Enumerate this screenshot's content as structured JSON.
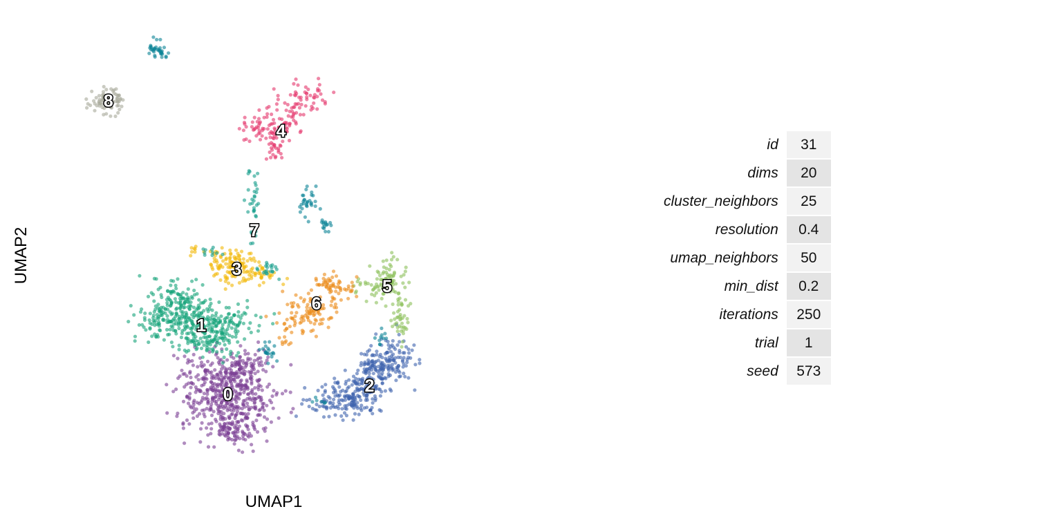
{
  "chart_data": {
    "type": "scatter",
    "xlabel": "UMAP1",
    "ylabel": "UMAP2",
    "xlim": [
      0,
      100
    ],
    "ylim": [
      0,
      100
    ],
    "grid": false,
    "legend": "none",
    "point_opacity": 0.6,
    "clusters": [
      {
        "label": "0",
        "color": "#7B3F94",
        "label_pos": [
          39,
          15
        ],
        "blobs": [
          [
            39,
            14,
            6.5,
            4.5,
            380
          ],
          [
            40,
            7,
            4,
            2,
            90
          ],
          [
            37,
            21,
            6,
            3,
            120
          ],
          [
            43,
            22,
            4,
            3,
            60
          ]
        ]
      },
      {
        "label": "1",
        "color": "#16A37A",
        "label_pos": [
          33,
          31
        ],
        "blobs": [
          [
            33,
            31,
            7,
            4,
            300
          ],
          [
            28,
            37,
            4,
            3,
            90
          ],
          [
            23,
            32,
            3,
            2,
            50
          ],
          [
            36,
            27,
            3,
            2,
            40
          ]
        ]
      },
      {
        "label": "2",
        "color": "#3D63AD",
        "label_pos": [
          71,
          17
        ],
        "blobs": [
          [
            65,
            14,
            5,
            2.5,
            160
          ],
          [
            73,
            21,
            4,
            3,
            140
          ],
          [
            77,
            24,
            2.5,
            3,
            60
          ],
          [
            70,
            17,
            3,
            2,
            40
          ]
        ]
      },
      {
        "label": "3",
        "color": "#F2B705",
        "label_pos": [
          41,
          44
        ],
        "blobs": [
          [
            40,
            45,
            3.5,
            2.5,
            120
          ],
          [
            46,
            42,
            3,
            1.5,
            30
          ],
          [
            32,
            49,
            1,
            1,
            8
          ]
        ]
      },
      {
        "label": "4",
        "color": "#E4376D",
        "label_pos": [
          51,
          76
        ],
        "blobs": [
          [
            47,
            77,
            3,
            2,
            60
          ],
          [
            50,
            73,
            2,
            2,
            35
          ],
          [
            57,
            84,
            4,
            2,
            50
          ],
          [
            53,
            79,
            2,
            2,
            25
          ]
        ]
      },
      {
        "label": "5",
        "color": "#8CC05A",
        "label_pos": [
          75,
          40
        ],
        "blobs": [
          [
            75,
            41,
            3,
            3,
            90
          ],
          [
            78,
            33,
            1.5,
            3,
            40
          ],
          [
            69,
            40,
            1.5,
            1,
            10
          ]
        ]
      },
      {
        "label": "6",
        "color": "#EB8A18",
        "label_pos": [
          59,
          36
        ],
        "blobs": [
          [
            57,
            34,
            4,
            3,
            90
          ],
          [
            63,
            40,
            3,
            2,
            60
          ],
          [
            53,
            29,
            2,
            2,
            15
          ]
        ]
      },
      {
        "label": "7",
        "color": "#149C8A",
        "label_pos": [
          45,
          53
        ],
        "blobs": [
          [
            45,
            60,
            1.2,
            5,
            35
          ],
          [
            48,
            44,
            2,
            1.2,
            20
          ],
          [
            35,
            48,
            1.5,
            1.2,
            10
          ]
        ]
      },
      {
        "label": "8",
        "color": "#A7A999",
        "label_pos": [
          12,
          83
        ],
        "blobs": [
          [
            12,
            83,
            2.5,
            1.8,
            90
          ]
        ]
      },
      {
        "label": "",
        "color": "#0B8496",
        "label_pos": null,
        "blobs": [
          [
            23,
            95,
            1.5,
            1.5,
            35
          ],
          [
            57,
            60,
            1.2,
            2.5,
            30
          ],
          [
            61,
            54,
            1,
            1.2,
            15
          ],
          [
            48,
            25,
            1.2,
            1.5,
            20
          ],
          [
            74,
            28,
            1.5,
            1.5,
            10
          ],
          [
            60,
            14,
            1.5,
            1,
            6
          ]
        ]
      }
    ]
  },
  "params": [
    {
      "name": "id",
      "value": "31"
    },
    {
      "name": "dims",
      "value": "20"
    },
    {
      "name": "cluster_neighbors",
      "value": "25"
    },
    {
      "name": "resolution",
      "value": "0.4"
    },
    {
      "name": "umap_neighbors",
      "value": "50"
    },
    {
      "name": "min_dist",
      "value": "0.2"
    },
    {
      "name": "iterations",
      "value": "250"
    },
    {
      "name": "trial",
      "value": "1"
    },
    {
      "name": "seed",
      "value": "573"
    }
  ]
}
